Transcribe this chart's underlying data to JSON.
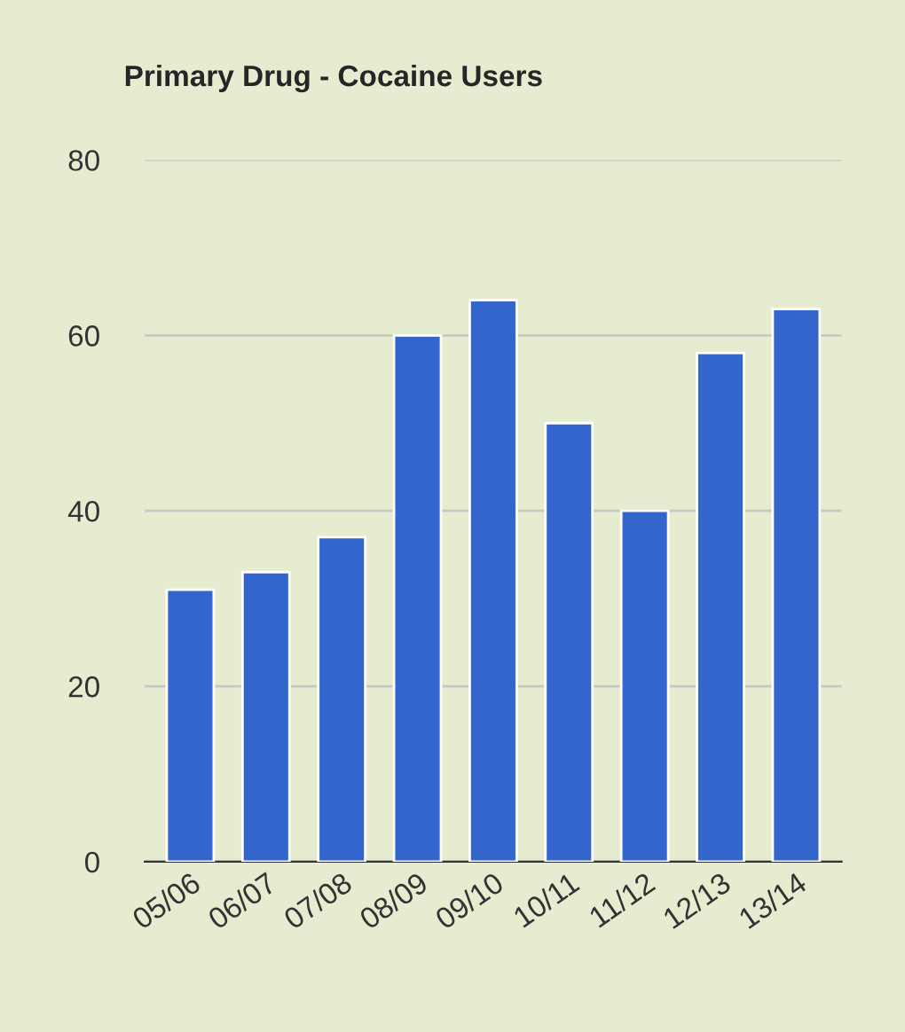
{
  "chart_data": {
    "type": "bar",
    "title": "Primary Drug - Cocaine Users",
    "categories": [
      "05/06",
      "06/07",
      "07/08",
      "08/09",
      "09/10",
      "10/11",
      "11/12",
      "12/13",
      "13/14"
    ],
    "values": [
      31,
      33,
      37,
      60,
      64,
      50,
      40,
      58,
      63
    ],
    "color": "#3366cc",
    "ylim": [
      0,
      80
    ],
    "yticks": [
      0,
      20,
      40,
      60,
      80
    ],
    "grid": "y",
    "legend": false
  }
}
